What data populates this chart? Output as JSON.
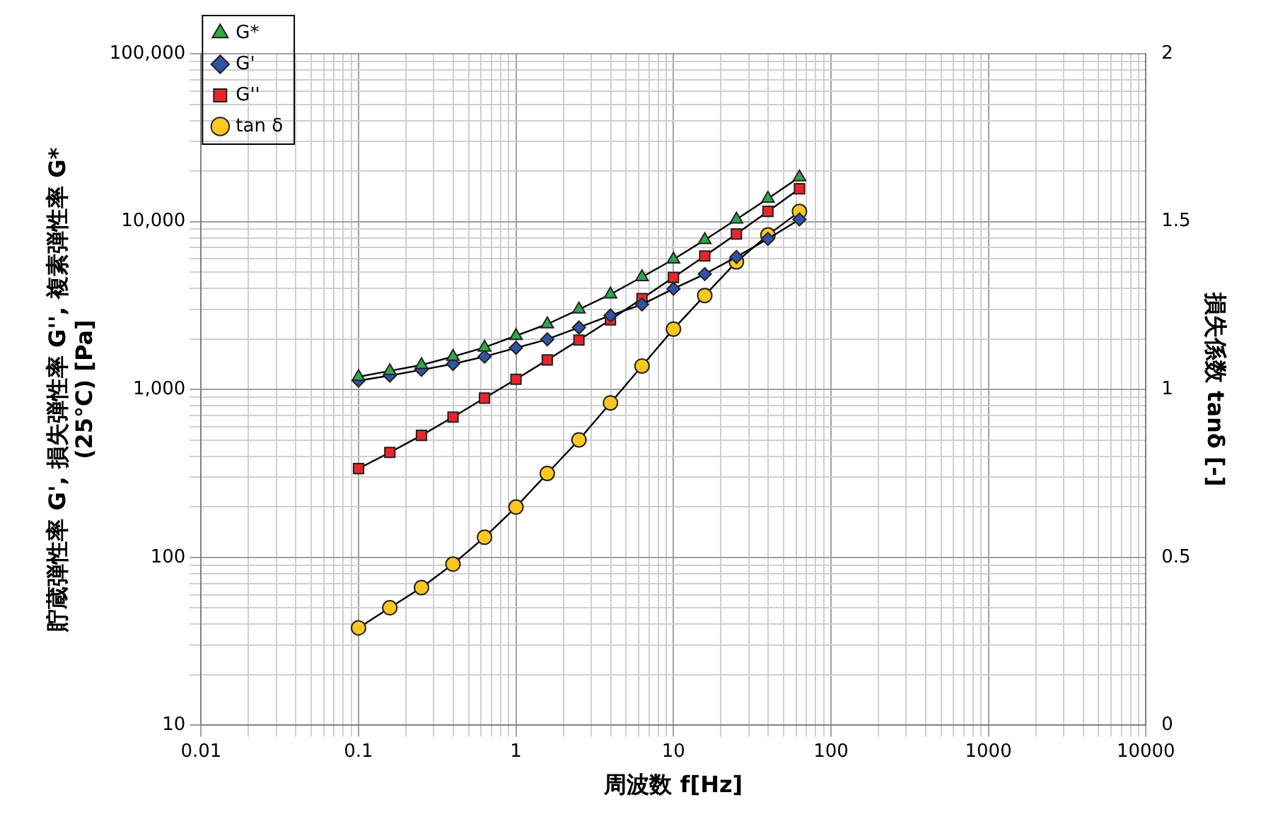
{
  "chart_data": {
    "type": "line",
    "xlabel": "周波数 f[Hz]",
    "ylabel": "貯蔵弾性率 G', 損失弾性率 G'', 複素弾性率 G*\n(25°C) [Pa]",
    "y2label": "損失係数 tanδ [-]",
    "x": [
      0.1,
      0.158,
      0.251,
      0.398,
      0.631,
      1,
      1.58,
      2.51,
      3.98,
      6.31,
      10,
      15.8,
      25.1,
      39.8,
      63.1
    ],
    "series": [
      {
        "name": "G*",
        "color": "#2ea84a",
        "marker": "triangle",
        "values": [
          1190,
          1290,
          1400,
          1570,
          1780,
          2090,
          2450,
          3000,
          3690,
          4680,
          5960,
          7780,
          10300,
          13700,
          18400
        ]
      },
      {
        "name": "G'",
        "color": "#2f55a4",
        "marker": "diamond",
        "values": [
          1130,
          1210,
          1310,
          1420,
          1570,
          1770,
          1990,
          2340,
          2760,
          3210,
          3980,
          4870,
          6160,
          7890,
          10300
        ]
      },
      {
        "name": "G''",
        "color": "#e8262a",
        "marker": "square",
        "values": [
          338,
          422,
          533,
          685,
          889,
          1150,
          1500,
          1970,
          2600,
          3480,
          4650,
          6240,
          8440,
          11500,
          15700
        ]
      },
      {
        "name": "tan δ",
        "color": "#fcc820",
        "marker": "circle",
        "axis": "y2",
        "values": [
          0.29,
          0.35,
          0.41,
          0.48,
          0.56,
          0.65,
          0.75,
          0.85,
          0.96,
          1.07,
          1.18,
          1.28,
          1.38,
          1.46,
          1.53
        ]
      }
    ],
    "log": "xy",
    "xlim": [
      0.01,
      10000
    ],
    "xticks": [
      0.01,
      {
        "value": 0.02,
        "label": null
      },
      {
        "value": 0.03,
        "label": null
      },
      {
        "value": 0.04,
        "label": null
      },
      {
        "value": 0.05,
        "label": null
      },
      {
        "value": 0.06,
        "label": null
      },
      {
        "value": 0.07,
        "label": null
      },
      {
        "value": 0.08,
        "label": null
      },
      {
        "value": 0.09,
        "label": null
      },
      0.1,
      {
        "value": 0.2,
        "label": null
      },
      {
        "value": 0.3,
        "label": null
      },
      {
        "value": 0.4,
        "label": null
      },
      {
        "value": 0.5,
        "label": null
      },
      {
        "value": 0.6,
        "label": null
      },
      {
        "value": 0.7,
        "label": null
      },
      {
        "value": 0.8,
        "label": null
      },
      {
        "value": 0.9,
        "label": null
      },
      1,
      {
        "value": 2,
        "label": null
      },
      {
        "value": 3,
        "label": null
      },
      {
        "value": 4,
        "label": null
      },
      {
        "value": 5,
        "label": null
      },
      {
        "value": 6,
        "label": null
      },
      {
        "value": 7,
        "label": null
      },
      {
        "value": 8,
        "label": null
      },
      {
        "value": 9,
        "label": null
      },
      10,
      {
        "value": 20,
        "label": null
      },
      {
        "value": 30,
        "label": null
      },
      {
        "value": 40,
        "label": null
      },
      {
        "value": 50,
        "label": null
      },
      {
        "value": 60,
        "label": null
      },
      {
        "value": 70,
        "label": null
      },
      {
        "value": 80,
        "label": null
      },
      {
        "value": 90,
        "label": null
      },
      100,
      {
        "value": 200,
        "label": null
      },
      {
        "value": 300,
        "label": null
      },
      {
        "value": 400,
        "label": null
      },
      {
        "value": 500,
        "label": null
      },
      {
        "value": 600,
        "label": null
      },
      {
        "value": 700,
        "label": null
      },
      {
        "value": 800,
        "label": null
      },
      {
        "value": 900,
        "label": null
      },
      1000,
      {
        "value": 2000,
        "label": null
      },
      {
        "value": 3000,
        "label": null
      },
      {
        "value": 4000,
        "label": null
      },
      {
        "value": 5000,
        "label": null
      },
      {
        "value": 6000,
        "label": null
      },
      {
        "value": 7000,
        "label": null
      },
      {
        "value": 8000,
        "label": null
      },
      {
        "value": 9000,
        "label": null
      },
      10000
    ],
    "ylim": [
      10,
      100000
    ],
    "yticks": [
      10,
      {
        "value": 20,
        "label": null
      },
      {
        "value": 30,
        "label": null
      },
      {
        "value": 40,
        "label": null
      },
      {
        "value": 50,
        "label": null
      },
      {
        "value": 60,
        "label": null
      },
      {
        "value": 70,
        "label": null
      },
      {
        "value": 80,
        "label": null
      },
      {
        "value": 90,
        "label": null
      },
      100,
      {
        "value": 200,
        "label": null
      },
      {
        "value": 300,
        "label": null
      },
      {
        "value": 400,
        "label": null
      },
      {
        "value": 500,
        "label": null
      },
      {
        "value": 600,
        "label": null
      },
      {
        "value": 700,
        "label": null
      },
      {
        "value": 800,
        "label": null
      },
      {
        "value": 900,
        "label": null
      },
      {
        "value": 1000,
        "label": "1,000"
      },
      {
        "value": 2000,
        "label": null
      },
      {
        "value": 3000,
        "label": null
      },
      {
        "value": 4000,
        "label": null
      },
      {
        "value": 5000,
        "label": null
      },
      {
        "value": 6000,
        "label": null
      },
      {
        "value": 7000,
        "label": null
      },
      {
        "value": 8000,
        "label": null
      },
      {
        "value": 9000,
        "label": null
      },
      {
        "value": 10000,
        "label": "10,000"
      },
      {
        "value": 20000,
        "label": null
      },
      {
        "value": 30000,
        "label": null
      },
      {
        "value": 40000,
        "label": null
      },
      {
        "value": 50000,
        "label": null
      },
      {
        "value": 60000,
        "label": null
      },
      {
        "value": 70000,
        "label": null
      },
      {
        "value": 80000,
        "label": null
      },
      {
        "value": 90000,
        "label": null
      },
      {
        "value": 100000,
        "label": "100,000"
      }
    ],
    "y2lim": [
      0,
      2
    ],
    "y2ticks": [
      0,
      0.5,
      1,
      1.5,
      2
    ],
    "grid": true,
    "legend": "top left",
    "line_style": "solid"
  }
}
